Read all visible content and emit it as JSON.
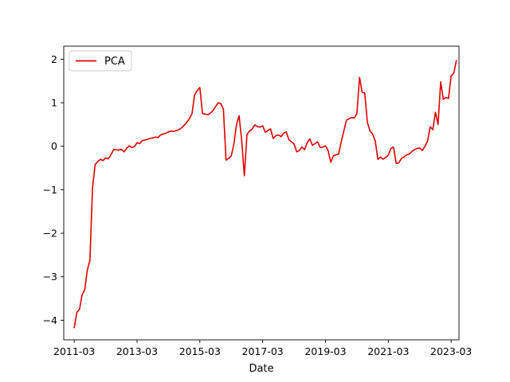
{
  "chart_data": {
    "type": "line",
    "title": "",
    "xlabel": "Date",
    "ylabel": "",
    "x_axis_kind": "date",
    "xlim": [
      "2010-11-01",
      "2023-06-01"
    ],
    "ylim": [
      -4.45,
      2.3
    ],
    "x_ticks": [
      "2011-03",
      "2013-03",
      "2015-03",
      "2017-03",
      "2019-03",
      "2021-03",
      "2023-03"
    ],
    "y_ticks": [
      -4,
      -3,
      -2,
      -1,
      0,
      1,
      2
    ],
    "grid": false,
    "legend": {
      "position": "top-left",
      "entries": [
        "PCA"
      ]
    },
    "series": [
      {
        "name": "PCA",
        "color": "#e00000",
        "points": [
          [
            "2011-03",
            -4.17
          ],
          [
            "2011-04",
            -3.82
          ],
          [
            "2011-05",
            -3.75
          ],
          [
            "2011-06",
            -3.42
          ],
          [
            "2011-07",
            -3.3
          ],
          [
            "2011-08",
            -2.85
          ],
          [
            "2011-09",
            -2.62
          ],
          [
            "2011-10",
            -0.95
          ],
          [
            "2011-11",
            -0.42
          ],
          [
            "2011-12",
            -0.35
          ],
          [
            "2012-01",
            -0.3
          ],
          [
            "2012-02",
            -0.33
          ],
          [
            "2012-03",
            -0.27
          ],
          [
            "2012-04",
            -0.29
          ],
          [
            "2012-05",
            -0.2
          ],
          [
            "2012-06",
            -0.08
          ],
          [
            "2012-07",
            -0.08
          ],
          [
            "2012-08",
            -0.09
          ],
          [
            "2012-09",
            -0.07
          ],
          [
            "2012-10",
            -0.13
          ],
          [
            "2012-11",
            -0.05
          ],
          [
            "2012-12",
            0.01
          ],
          [
            "2013-01",
            -0.03
          ],
          [
            "2013-02",
            -0.01
          ],
          [
            "2013-03",
            0.08
          ],
          [
            "2013-04",
            0.06
          ],
          [
            "2013-05",
            0.13
          ],
          [
            "2013-06",
            0.14
          ],
          [
            "2013-07",
            0.16
          ],
          [
            "2013-08",
            0.18
          ],
          [
            "2013-09",
            0.19
          ],
          [
            "2013-10",
            0.21
          ],
          [
            "2013-11",
            0.2
          ],
          [
            "2013-12",
            0.26
          ],
          [
            "2014-01",
            0.28
          ],
          [
            "2014-02",
            0.3
          ],
          [
            "2014-03",
            0.33
          ],
          [
            "2014-04",
            0.35
          ],
          [
            "2014-05",
            0.34
          ],
          [
            "2014-06",
            0.36
          ],
          [
            "2014-07",
            0.38
          ],
          [
            "2014-08",
            0.42
          ],
          [
            "2014-09",
            0.48
          ],
          [
            "2014-10",
            0.55
          ],
          [
            "2014-11",
            0.63
          ],
          [
            "2014-12",
            0.75
          ],
          [
            "2015-01",
            1.18
          ],
          [
            "2015-02",
            1.28
          ],
          [
            "2015-03",
            1.35
          ],
          [
            "2015-04",
            0.75
          ],
          [
            "2015-05",
            0.74
          ],
          [
            "2015-06",
            0.72
          ],
          [
            "2015-07",
            0.76
          ],
          [
            "2015-08",
            0.82
          ],
          [
            "2015-09",
            0.91
          ],
          [
            "2015-10",
            1.0
          ],
          [
            "2015-11",
            0.98
          ],
          [
            "2015-12",
            0.85
          ],
          [
            "2016-01",
            -0.32
          ],
          [
            "2016-02",
            -0.28
          ],
          [
            "2016-03",
            -0.22
          ],
          [
            "2016-04",
            0.05
          ],
          [
            "2016-05",
            0.5
          ],
          [
            "2016-06",
            0.7
          ],
          [
            "2016-07",
            0.12
          ],
          [
            "2016-08",
            -0.68
          ],
          [
            "2016-09",
            0.27
          ],
          [
            "2016-10",
            0.35
          ],
          [
            "2016-11",
            0.4
          ],
          [
            "2016-12",
            0.49
          ],
          [
            "2017-01",
            0.45
          ],
          [
            "2017-02",
            0.44
          ],
          [
            "2017-03",
            0.47
          ],
          [
            "2017-04",
            0.32
          ],
          [
            "2017-05",
            0.36
          ],
          [
            "2017-06",
            0.4
          ],
          [
            "2017-07",
            0.18
          ],
          [
            "2017-08",
            0.24
          ],
          [
            "2017-09",
            0.26
          ],
          [
            "2017-10",
            0.22
          ],
          [
            "2017-11",
            0.3
          ],
          [
            "2017-12",
            0.33
          ],
          [
            "2018-01",
            0.15
          ],
          [
            "2018-02",
            0.1
          ],
          [
            "2018-03",
            0.05
          ],
          [
            "2018-04",
            -0.13
          ],
          [
            "2018-05",
            -0.1
          ],
          [
            "2018-06",
            -0.02
          ],
          [
            "2018-07",
            -0.08
          ],
          [
            "2018-08",
            0.08
          ],
          [
            "2018-09",
            0.17
          ],
          [
            "2018-10",
            0.02
          ],
          [
            "2018-11",
            0.06
          ],
          [
            "2018-12",
            0.1
          ],
          [
            "2019-01",
            -0.03
          ],
          [
            "2019-02",
            -0.02
          ],
          [
            "2019-03",
            0.01
          ],
          [
            "2019-04",
            -0.1
          ],
          [
            "2019-05",
            -0.37
          ],
          [
            "2019-06",
            -0.22
          ],
          [
            "2019-07",
            -0.2
          ],
          [
            "2019-08",
            -0.18
          ],
          [
            "2019-09",
            0.1
          ],
          [
            "2019-10",
            0.35
          ],
          [
            "2019-11",
            0.6
          ],
          [
            "2019-12",
            0.63
          ],
          [
            "2020-01",
            0.66
          ],
          [
            "2020-02",
            0.65
          ],
          [
            "2020-03",
            0.75
          ],
          [
            "2020-04",
            1.58
          ],
          [
            "2020-05",
            1.24
          ],
          [
            "2020-06",
            1.22
          ],
          [
            "2020-07",
            0.55
          ],
          [
            "2020-08",
            0.35
          ],
          [
            "2020-09",
            0.28
          ],
          [
            "2020-10",
            0.12
          ],
          [
            "2020-11",
            -0.3
          ],
          [
            "2020-12",
            -0.25
          ],
          [
            "2021-01",
            -0.3
          ],
          [
            "2021-02",
            -0.26
          ],
          [
            "2021-03",
            -0.2
          ],
          [
            "2021-04",
            -0.05
          ],
          [
            "2021-05",
            -0.02
          ],
          [
            "2021-06",
            -0.4
          ],
          [
            "2021-07",
            -0.38
          ],
          [
            "2021-08",
            -0.28
          ],
          [
            "2021-09",
            -0.25
          ],
          [
            "2021-10",
            -0.2
          ],
          [
            "2021-11",
            -0.18
          ],
          [
            "2021-12",
            -0.12
          ],
          [
            "2022-01",
            -0.08
          ],
          [
            "2022-02",
            -0.05
          ],
          [
            "2022-03",
            -0.04
          ],
          [
            "2022-04",
            -0.1
          ],
          [
            "2022-05",
            0.0
          ],
          [
            "2022-06",
            0.12
          ],
          [
            "2022-07",
            0.45
          ],
          [
            "2022-08",
            0.38
          ],
          [
            "2022-09",
            0.78
          ],
          [
            "2022-10",
            0.5
          ],
          [
            "2022-11",
            1.48
          ],
          [
            "2022-12",
            1.08
          ],
          [
            "2023-01",
            1.12
          ],
          [
            "2023-02",
            1.1
          ],
          [
            "2023-03",
            1.62
          ],
          [
            "2023-04",
            1.68
          ],
          [
            "2023-05",
            1.97
          ]
        ]
      }
    ]
  }
}
